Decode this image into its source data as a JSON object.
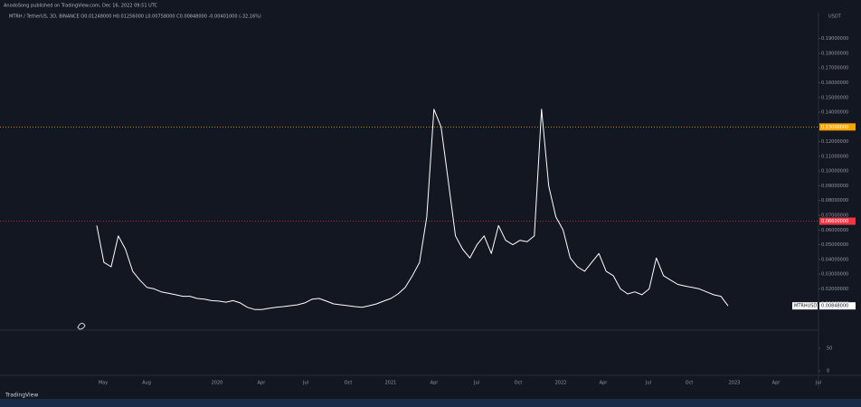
{
  "chart_data": {
    "type": "line",
    "publisher": "AnodoSong published on TradingView.com, Dec 16, 2022 09:51 UTC",
    "title": "MTRH / TetherUS, 3D, BINANCE  O0.01248000  H0.01256000  L0.00758000  C0.00848000  -0.00401000 (-32.16%)",
    "currency": "USDT",
    "watermark": "TradingView",
    "xticks": [
      "May",
      "Aug",
      "2020",
      "Apr",
      "Jul",
      "Oct",
      "2021",
      "Apr",
      "Jul",
      "Oct",
      "2022",
      "Apr",
      "Jul",
      "Oct",
      "2023",
      "Apr",
      "Jul"
    ],
    "series": [
      {
        "name": "MTRHUSDT",
        "color": "#ffffff",
        "values": [
          0.063,
          0.038,
          0.035,
          0.056,
          0.047,
          0.032,
          0.026,
          0.021,
          0.02,
          0.018,
          0.017,
          0.016,
          0.015,
          0.015,
          0.0135,
          0.013,
          0.012,
          0.0117,
          0.011,
          0.012,
          0.0105,
          0.0075,
          0.006,
          0.006,
          0.0068,
          0.0075,
          0.008,
          0.0086,
          0.0092,
          0.0105,
          0.013,
          0.0135,
          0.0117,
          0.0098,
          0.0092,
          0.0086,
          0.008,
          0.0075,
          0.0086,
          0.0098,
          0.0117,
          0.0135,
          0.0166,
          0.021,
          0.029,
          0.038,
          0.069,
          0.142,
          0.13,
          0.093,
          0.056,
          0.047,
          0.041,
          0.05,
          0.056,
          0.044,
          0.063,
          0.053,
          0.05,
          0.053,
          0.052,
          0.056,
          0.142,
          0.09,
          0.069,
          0.06,
          0.041,
          0.035,
          0.032,
          0.038,
          0.044,
          0.032,
          0.029,
          0.02,
          0.0166,
          0.018,
          0.016,
          0.02,
          0.041,
          0.029,
          0.026,
          0.023,
          0.022,
          0.021,
          0.02,
          0.018,
          0.016,
          0.015,
          0.00848
        ]
      }
    ],
    "last_price": {
      "value": 0.00848,
      "label": "0.00848000"
    },
    "price_lines": [
      {
        "value": 0.13,
        "label": "0.13000000",
        "color": "#f7a600"
      },
      {
        "value": 0.066,
        "label": "0.06600000",
        "color": "#f23645"
      }
    ],
    "ylim": [
      -0.008,
      0.207
    ],
    "yticks": [
      {
        "value": 0.01,
        "label": "0.01000000"
      },
      {
        "value": 0.02,
        "label": "0.02000000"
      },
      {
        "value": 0.03,
        "label": "0.03000000"
      },
      {
        "value": 0.04,
        "label": "0.04000000"
      },
      {
        "value": 0.05,
        "label": "0.05000000"
      },
      {
        "value": 0.06,
        "label": "0.06000000"
      },
      {
        "value": 0.07,
        "label": "0.07000000"
      },
      {
        "value": 0.08,
        "label": "0.08000000"
      },
      {
        "value": 0.09,
        "label": "0.09000000"
      },
      {
        "value": 0.1,
        "label": "0.10000000"
      },
      {
        "value": 0.11,
        "label": "0.11000000"
      },
      {
        "value": 0.12,
        "label": "0.12000000"
      },
      {
        "value": 0.14,
        "label": "0.14000000"
      },
      {
        "value": 0.15,
        "label": "0.15000000"
      },
      {
        "value": 0.16,
        "label": "0.16000000"
      },
      {
        "value": 0.17,
        "label": "0.17000000"
      },
      {
        "value": 0.18,
        "label": "0.18000000"
      },
      {
        "value": 0.19,
        "label": "0.19000000"
      }
    ],
    "volume_ylim": [
      0,
      80
    ],
    "volume_yticks": [
      0,
      50
    ]
  }
}
